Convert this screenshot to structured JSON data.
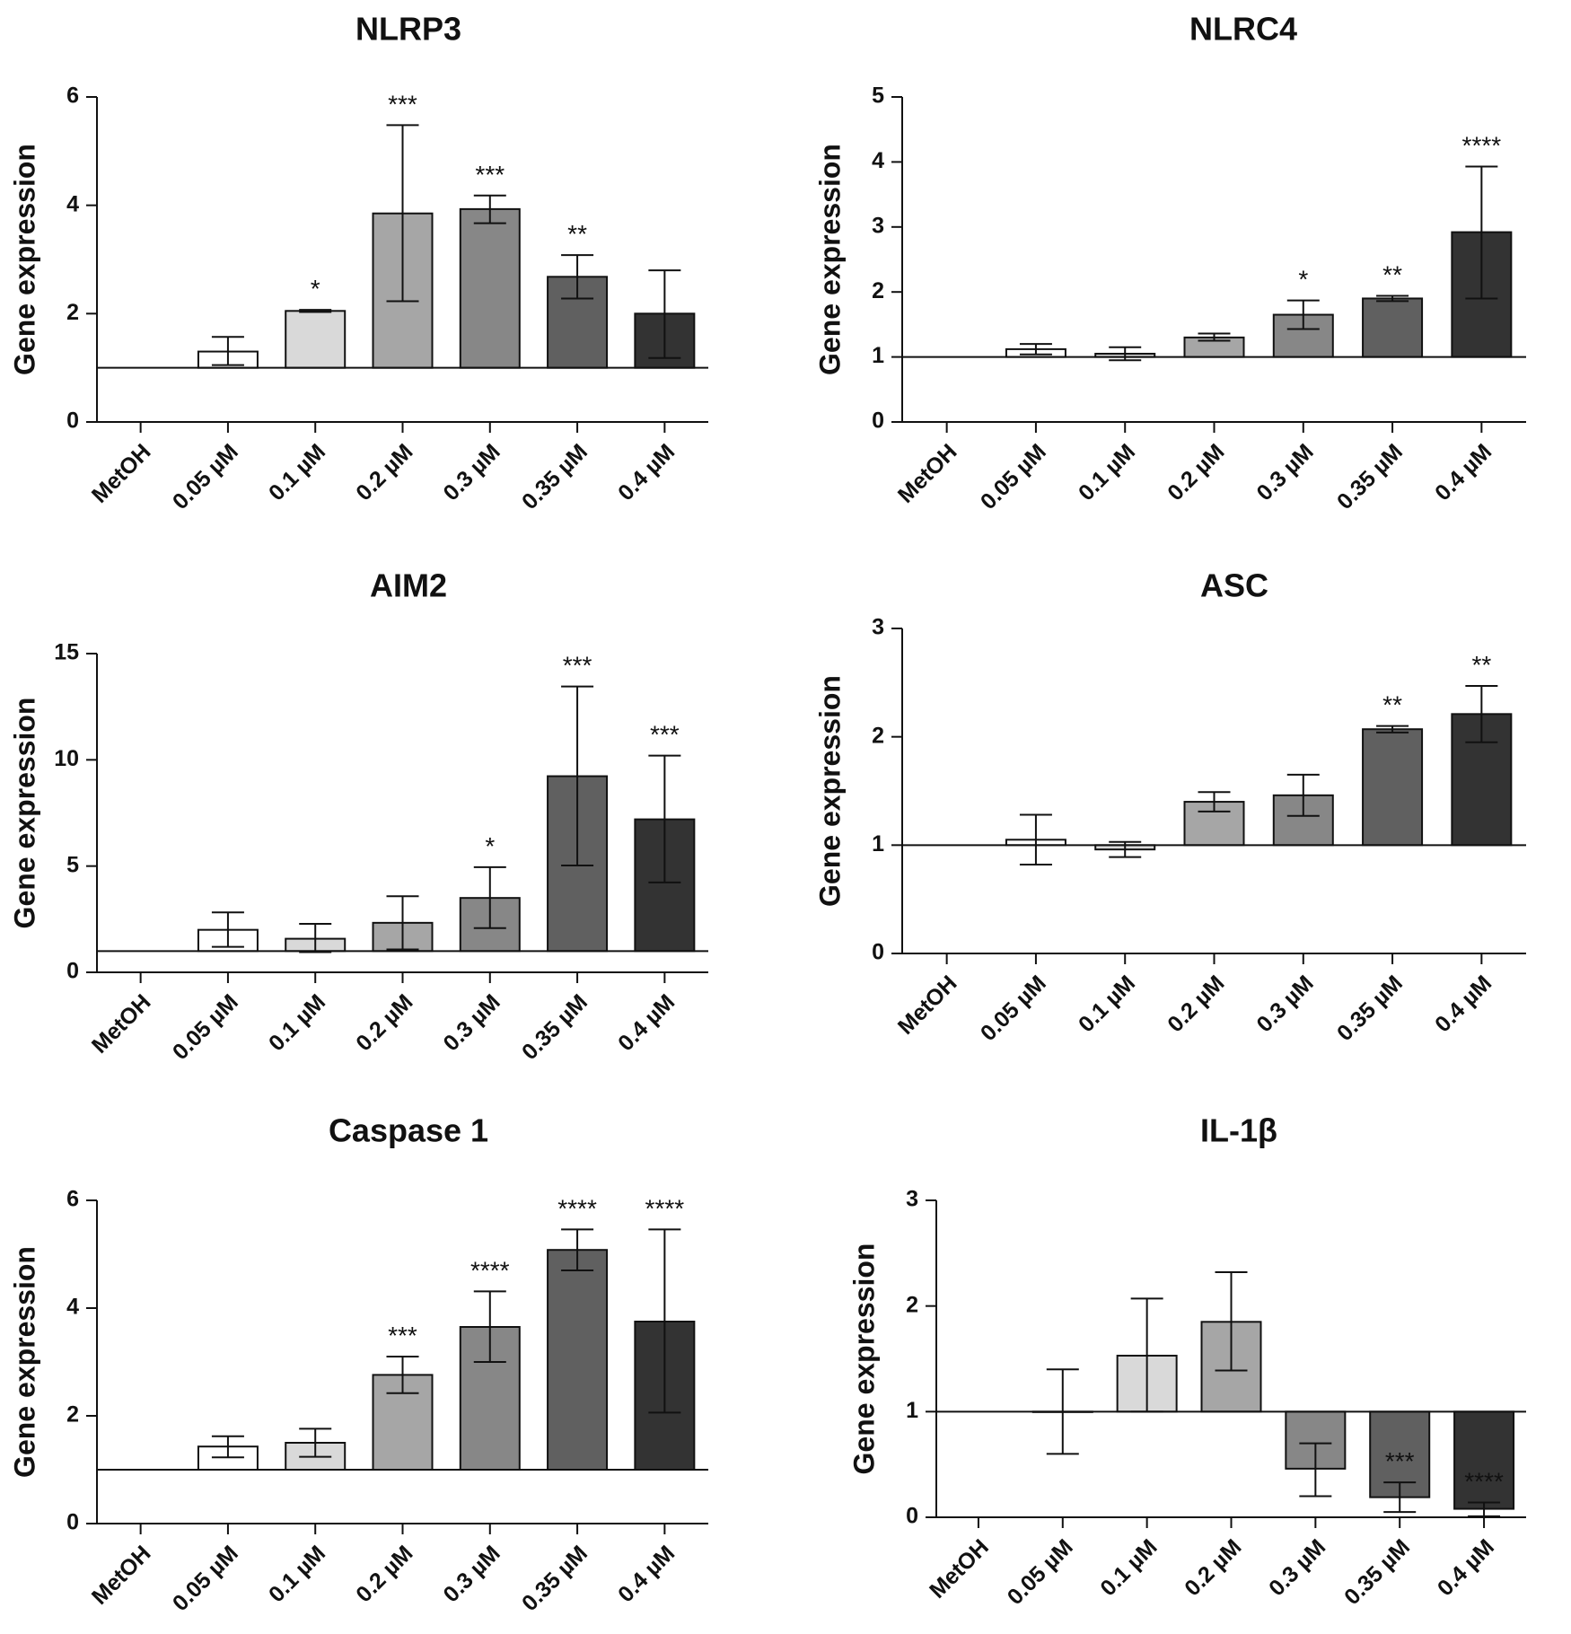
{
  "figure": {
    "background": "#ffffff"
  },
  "chart_data": [
    {
      "type": "bar",
      "title": "NLRP3",
      "ylabel": "Gene expression",
      "xlabel": "",
      "ylim": [
        0,
        6
      ],
      "yticks": [
        0,
        2,
        4,
        6
      ],
      "baseline": 1,
      "categories": [
        "MetOH",
        "0.05 µM",
        "0.1 µM",
        "0.2 µM",
        "0.3 µM",
        "0.35 µM",
        "0.4 µM"
      ],
      "values": [
        null,
        1.3,
        2.05,
        3.85,
        3.93,
        2.68,
        2.0
      ],
      "err_low": [
        null,
        1.05,
        2.03,
        2.23,
        3.67,
        2.28,
        1.18
      ],
      "err_high": [
        null,
        1.57,
        2.07,
        5.48,
        4.18,
        3.08,
        2.8
      ],
      "significance": [
        "",
        "",
        "*",
        "***",
        "***",
        "**",
        ""
      ],
      "colors": [
        "#ffffff",
        "#ffffff",
        "#d9d9d9",
        "#a6a6a6",
        "#878787",
        "#606060",
        "#333333"
      ]
    },
    {
      "type": "bar",
      "title": "NLRC4",
      "ylabel": "Gene expression",
      "xlabel": "",
      "ylim": [
        0,
        5
      ],
      "yticks": [
        0,
        1,
        2,
        3,
        4,
        5
      ],
      "baseline": 1,
      "categories": [
        "MetOH",
        "0.05 µM",
        "0.1 µM",
        "0.2 µM",
        "0.3 µM",
        "0.35 µM",
        "0.4 µM"
      ],
      "values": [
        null,
        1.12,
        1.05,
        1.3,
        1.65,
        1.9,
        2.92
      ],
      "err_low": [
        null,
        1.04,
        0.95,
        1.25,
        1.43,
        1.86,
        1.9
      ],
      "err_high": [
        null,
        1.2,
        1.15,
        1.36,
        1.87,
        1.94,
        3.93
      ],
      "significance": [
        "",
        "",
        "",
        "",
        "*",
        "**",
        "****"
      ],
      "colors": [
        "#ffffff",
        "#ffffff",
        "#d9d9d9",
        "#a6a6a6",
        "#878787",
        "#606060",
        "#333333"
      ]
    },
    {
      "type": "bar",
      "title": "AIM2",
      "ylabel": "Gene expression",
      "xlabel": "",
      "ylim": [
        0,
        15
      ],
      "yticks": [
        0,
        5,
        10,
        15
      ],
      "baseline": 1,
      "categories": [
        "MetOH",
        "0.05 µM",
        "0.1 µM",
        "0.2 µM",
        "0.3 µM",
        "0.35 µM",
        "0.4 µM"
      ],
      "values": [
        null,
        2.0,
        1.58,
        2.33,
        3.5,
        9.23,
        7.2
      ],
      "err_low": [
        null,
        1.2,
        0.95,
        1.08,
        2.08,
        5.03,
        4.23
      ],
      "err_high": [
        null,
        2.82,
        2.28,
        3.58,
        4.95,
        13.45,
        10.2
      ],
      "significance": [
        "",
        "",
        "",
        "",
        "*",
        "***",
        "***"
      ],
      "colors": [
        "#ffffff",
        "#ffffff",
        "#d9d9d9",
        "#a6a6a6",
        "#878787",
        "#606060",
        "#333333"
      ]
    },
    {
      "type": "bar",
      "title": "ASC",
      "ylabel": "Gene expression",
      "xlabel": "",
      "ylim": [
        0,
        3
      ],
      "yticks": [
        0,
        1,
        2,
        3
      ],
      "baseline": 1,
      "categories": [
        "MetOH",
        "0.05 µM",
        "0.1 µM",
        "0.2 µM",
        "0.3 µM",
        "0.35 µM",
        "0.4 µM"
      ],
      "values": [
        null,
        1.05,
        0.96,
        1.4,
        1.46,
        2.07,
        2.21
      ],
      "err_low": [
        null,
        0.82,
        0.89,
        1.31,
        1.27,
        2.04,
        1.95
      ],
      "err_high": [
        null,
        1.28,
        1.03,
        1.49,
        1.65,
        2.1,
        2.47
      ],
      "significance": [
        "",
        "",
        "",
        "",
        "",
        "**",
        "**"
      ],
      "colors": [
        "#ffffff",
        "#ffffff",
        "#d9d9d9",
        "#a6a6a6",
        "#878787",
        "#606060",
        "#333333"
      ]
    },
    {
      "type": "bar",
      "title": "Caspase 1",
      "ylabel": "Gene expression",
      "xlabel": "",
      "ylim": [
        0,
        6
      ],
      "yticks": [
        0,
        2,
        4,
        6
      ],
      "baseline": 1,
      "categories": [
        "MetOH",
        "0.05 µM",
        "0.1 µM",
        "0.2 µM",
        "0.3 µM",
        "0.35 µM",
        "0.4 µM"
      ],
      "values": [
        null,
        1.43,
        1.5,
        2.76,
        3.65,
        5.08,
        3.75
      ],
      "err_low": [
        null,
        1.23,
        1.24,
        2.42,
        3.0,
        4.7,
        2.06
      ],
      "err_high": [
        null,
        1.62,
        1.76,
        3.1,
        4.31,
        5.46,
        5.46
      ],
      "significance": [
        "",
        "",
        "",
        "***",
        "****",
        "****",
        "****"
      ],
      "colors": [
        "#ffffff",
        "#ffffff",
        "#d9d9d9",
        "#a6a6a6",
        "#878787",
        "#606060",
        "#333333"
      ]
    },
    {
      "type": "bar",
      "title": "IL-1β",
      "ylabel": "Gene expression",
      "xlabel": "",
      "ylim": [
        0,
        3
      ],
      "yticks": [
        0,
        1,
        2,
        3
      ],
      "baseline": 1,
      "categories": [
        "MetOH",
        "0.05 µM",
        "0.1 µM",
        "0.2 µM",
        "0.3 µM",
        "0.35 µM",
        "0.4 µM"
      ],
      "values": [
        null,
        1.0,
        1.53,
        1.85,
        0.46,
        0.19,
        0.08
      ],
      "err_low": [
        null,
        0.6,
        1.0,
        1.39,
        0.2,
        0.05,
        0.01
      ],
      "err_high": [
        null,
        1.4,
        2.07,
        2.32,
        0.7,
        0.33,
        0.14
      ],
      "significance": [
        "",
        "",
        "",
        "",
        "",
        "***",
        "****"
      ],
      "colors": [
        "#ffffff",
        "#ffffff",
        "#d9d9d9",
        "#a6a6a6",
        "#878787",
        "#606060",
        "#333333"
      ]
    }
  ]
}
